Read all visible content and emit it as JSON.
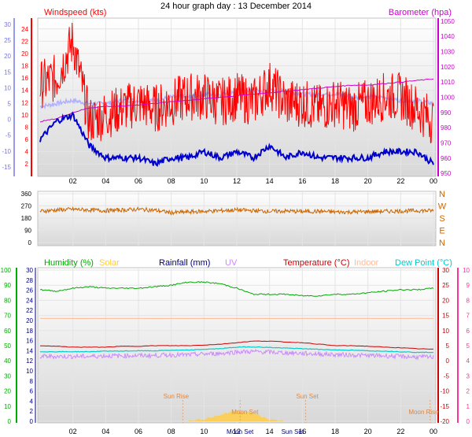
{
  "title": "24 hour graph day : 13 December 2014",
  "x_ticks": [
    "02",
    "04",
    "06",
    "08",
    "10",
    "12",
    "14",
    "16",
    "18",
    "20",
    "22",
    "00"
  ],
  "colors": {
    "wind": "#ff0000",
    "wind_avg": "#0000cc",
    "temp_out_wind": "#b0b0ff",
    "barometer": "#cc00cc",
    "wind_dir": "#cc6600",
    "humidity": "#00aa00",
    "temperature": "#cc0000",
    "dewpoint": "#00cccc",
    "indoor": "#ffbb99",
    "solar": "#ffcc44",
    "rainfall": "#000080",
    "uv": "#cc88ff"
  },
  "chart_data": [
    {
      "type": "line",
      "panel": "wind",
      "title": "24 hour graph day : 13 December 2014",
      "ylabel_left": "Windspeed (kts)",
      "ylabel_right": "Barometer (hpa)",
      "left_ticks_red": [
        "24",
        "22",
        "20",
        "18",
        "16",
        "14",
        "12",
        "10",
        "8",
        "6",
        "4",
        "2"
      ],
      "left_ticks_blue": [
        "30",
        "25",
        "20",
        "15",
        "10",
        "5",
        "0",
        "-5",
        "-10",
        "-15"
      ],
      "right_ticks": [
        "1050",
        "1040",
        "1030",
        "1020",
        "1010",
        "1000",
        "990",
        "980",
        "970",
        "960",
        "950"
      ],
      "ylim_wind": [
        1,
        25
      ],
      "ylim_baro": [
        948,
        1052
      ],
      "ylim_temp": [
        -18,
        32
      ],
      "x_hours": [
        0,
        1,
        2,
        3,
        4,
        5,
        6,
        7,
        8,
        9,
        10,
        11,
        12,
        13,
        14,
        15,
        16,
        17,
        18,
        19,
        20,
        21,
        22,
        23,
        24
      ],
      "series": [
        {
          "name": "gust",
          "values": [
            15,
            16,
            22,
            9,
            10,
            11,
            12,
            11,
            12,
            13,
            13,
            12,
            13,
            12,
            15,
            12,
            12,
            11,
            12,
            11,
            12,
            13,
            13,
            11,
            9
          ]
        },
        {
          "name": "average",
          "values": [
            6,
            9,
            10,
            5,
            3,
            3,
            3,
            2,
            3,
            3,
            4,
            3,
            4,
            3,
            5,
            3,
            4,
            3,
            3,
            3,
            3,
            4,
            4,
            4,
            2
          ]
        },
        {
          "name": "barometer",
          "values": [
            984,
            986,
            990,
            993,
            994,
            994,
            995,
            996,
            997,
            998,
            999,
            1000,
            1001,
            1002,
            1003,
            1004,
            1005,
            1006,
            1007,
            1008,
            1008,
            1009,
            1010,
            1011,
            1012
          ]
        },
        {
          "name": "outdoor",
          "values": [
            4,
            5,
            6,
            5,
            5,
            6,
            6,
            6,
            7,
            7,
            8,
            8,
            9,
            9,
            9,
            9,
            8,
            8,
            8,
            7,
            7,
            7,
            6,
            6,
            5
          ]
        }
      ]
    },
    {
      "type": "line",
      "panel": "direction",
      "y_ticks": [
        "360",
        "270",
        "180",
        "90",
        "0"
      ],
      "right_labels": [
        "N",
        "W",
        "S",
        "E",
        "N"
      ],
      "ylim": [
        0,
        360
      ],
      "series": [
        {
          "name": "direction",
          "values": [
            230,
            240,
            245,
            240,
            235,
            240,
            245,
            238,
            220,
            225,
            230,
            235,
            240,
            235,
            230,
            232,
            228,
            230,
            225,
            225,
            228,
            230,
            232,
            235,
            235
          ]
        }
      ]
    },
    {
      "type": "line",
      "panel": "temperature",
      "legend": [
        "Humidity (%)",
        "Solar",
        "Rainfall (mm)",
        "UV",
        "Temperature (°C)",
        "Indoor",
        "Dew Point (°C)"
      ],
      "left_ticks_green": [
        "100",
        "90",
        "80",
        "70",
        "60",
        "50",
        "40",
        "30",
        "20",
        "10",
        "0"
      ],
      "left_ticks_blue": [
        "30",
        "28",
        "26",
        "24",
        "22",
        "20",
        "18",
        "16",
        "14",
        "12",
        "10",
        "8",
        "6",
        "4",
        "2",
        "0"
      ],
      "right_ticks_red": [
        "30",
        "25",
        "20",
        "15",
        "10",
        "5",
        "0",
        "-5",
        "-10",
        "-15",
        "-20"
      ],
      "right_ticks_pink": [
        "10",
        "9",
        "8",
        "7",
        "6",
        "5",
        "4",
        "3",
        "2",
        "1",
        "0"
      ],
      "annotations": [
        "Sun Rise",
        "Sun Set",
        "Moon Set",
        "Moon Rise",
        "Moon Set",
        "Sun Set",
        "Moon Rise"
      ],
      "x_tick_extras": [
        "Moon Set",
        "Sun Set"
      ],
      "ylim_temp": [
        -20,
        30
      ],
      "ylim_hum": [
        0,
        100
      ],
      "series": [
        {
          "name": "humidity",
          "values": [
            87,
            86,
            88,
            89,
            88,
            88,
            88,
            89,
            90,
            92,
            92,
            91,
            88,
            84,
            84,
            84,
            83,
            83,
            84,
            84,
            85,
            86,
            87,
            87,
            88
          ]
        },
        {
          "name": "indoor",
          "values": [
            14,
            14,
            14,
            14,
            14,
            14,
            14,
            14,
            14,
            14,
            14,
            14,
            14,
            14,
            14,
            14,
            14,
            14,
            14,
            14,
            14,
            14,
            14,
            14,
            14
          ]
        },
        {
          "name": "temperature",
          "values": [
            5,
            4.8,
            4.5,
            4.5,
            4.5,
            4.8,
            4.8,
            5,
            5,
            5,
            5.2,
            5.5,
            6,
            6.5,
            6.5,
            6.2,
            6,
            5.5,
            5,
            5,
            4.8,
            4.5,
            4.3,
            4,
            3.8
          ]
        },
        {
          "name": "dewpoint",
          "values": [
            3,
            3,
            3,
            3,
            3.2,
            3.2,
            3.3,
            3.3,
            3.5,
            3.5,
            3.8,
            4,
            4.5,
            4.6,
            4.4,
            4.2,
            4,
            3.8,
            3.6,
            3.5,
            3.3,
            3.2,
            3,
            2.8,
            2.8
          ]
        },
        {
          "name": "solar",
          "values": [
            0,
            0,
            0,
            0,
            0,
            0,
            0,
            0,
            0,
            0,
            3,
            8,
            14,
            10,
            2,
            0,
            0,
            0,
            0,
            0,
            0,
            0,
            0,
            0,
            0
          ]
        }
      ]
    }
  ]
}
